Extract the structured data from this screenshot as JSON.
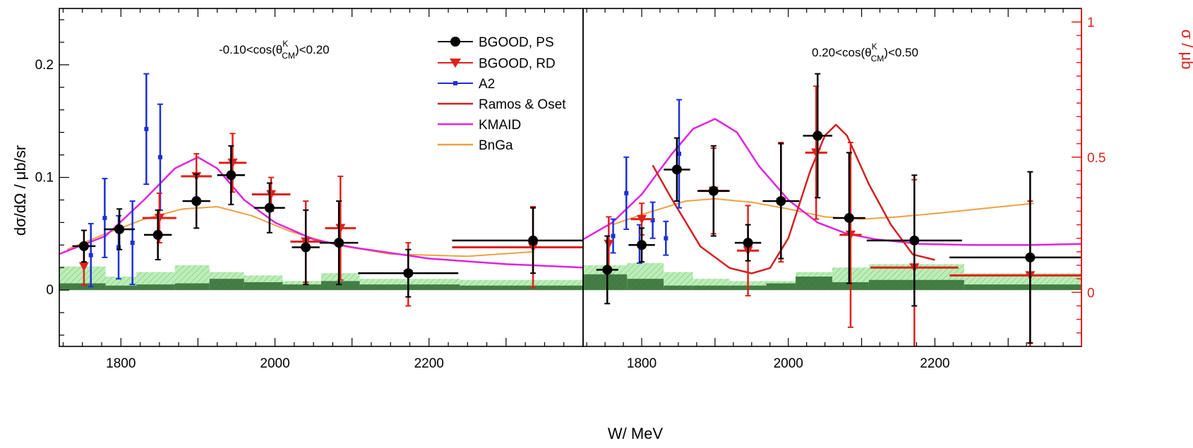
{
  "chart_data": {
    "type": "scatter",
    "xlabel": "W/ MeV",
    "ylabel": "dσ/dΩ / μb/sr",
    "y2label": "σ / μb",
    "xlim": [
      1720,
      2400
    ],
    "ylim": [
      -0.05,
      0.25
    ],
    "y2lim": [
      -0.2,
      1.05
    ],
    "x_ticks": [
      "1800",
      "2000",
      "2200"
    ],
    "y_ticks": [
      "0",
      "0.1",
      "0.2"
    ],
    "y2_ticks": [
      "0",
      "0.5",
      "1"
    ],
    "legend": {
      "position": "top-right of left panel",
      "entries": [
        "BGOOD, PS",
        "BGOOD, RD",
        "A2",
        "Ramos & Oset",
        "KMAID",
        "BnGa"
      ]
    },
    "colors": {
      "bgood_ps": "#000000",
      "bgood_rd": "#e0201b",
      "a2": "#1c30d8",
      "ramos_oset": "#d42020",
      "kmaid": "#e022e0",
      "bnga": "#f0a040",
      "systematics_light": "#9ce08a",
      "systematics_dark": "#2f6a2f",
      "secondary_axis": "#e0201b"
    },
    "panels": [
      {
        "label_prefix": "-0.10<cos(θ",
        "label_sup": "K",
        "label_sub": "CM",
        "label_suffix": ")<0.20",
        "bgood_ps": [
          {
            "x": 1752,
            "y": 0.039,
            "xerr": 15,
            "yerr": 0.014
          },
          {
            "x": 1798,
            "y": 0.054,
            "xerr": 20,
            "yerr": 0.018
          },
          {
            "x": 1848,
            "y": 0.049,
            "xerr": 18,
            "yerr": 0.022
          },
          {
            "x": 1898,
            "y": 0.079,
            "xerr": 18,
            "yerr": 0.024
          },
          {
            "x": 1943,
            "y": 0.102,
            "xerr": 18,
            "yerr": 0.026
          },
          {
            "x": 1993,
            "y": 0.073,
            "xerr": 20,
            "yerr": 0.022
          },
          {
            "x": 2040,
            "y": 0.038,
            "xerr": 18,
            "yerr": 0.033
          },
          {
            "x": 2083,
            "y": 0.042,
            "xerr": 25,
            "yerr": 0.037
          },
          {
            "x": 2173,
            "y": 0.015,
            "xerr": 65,
            "yerr": 0.021
          },
          {
            "x": 2335,
            "y": 0.044,
            "xerr": 105,
            "yerr": 0.029
          }
        ],
        "bgood_rd": [
          {
            "x": 1752,
            "y": 0.021,
            "xerr": 0,
            "yerr": 0.017
          },
          {
            "x": 1850,
            "y": 0.064,
            "xerr": 22,
            "yerr": 0.022
          },
          {
            "x": 1898,
            "y": 0.101,
            "xerr": 20,
            "yerr": 0.02
          },
          {
            "x": 1945,
            "y": 0.113,
            "xerr": 18,
            "yerr": 0.026
          },
          {
            "x": 1995,
            "y": 0.085,
            "xerr": 25,
            "yerr": 0.015
          },
          {
            "x": 2040,
            "y": 0.043,
            "xerr": 20,
            "yerr": 0.036
          },
          {
            "x": 2085,
            "y": 0.055,
            "xerr": 20,
            "yerr": 0.046
          },
          {
            "x": 2173,
            "y": 0.014,
            "xerr": 0,
            "yerr": 0.028
          },
          {
            "x": 2335,
            "y": 0.038,
            "xerr": 105,
            "yerr": 0.036
          }
        ],
        "a2": [
          {
            "x": 1761,
            "y": 0.031,
            "yerr": 0.028
          },
          {
            "x": 1779,
            "y": 0.064,
            "yerr": 0.035
          },
          {
            "x": 1797,
            "y": 0.038,
            "yerr": 0.028
          },
          {
            "x": 1815,
            "y": 0.042,
            "yerr": 0.037
          },
          {
            "x": 1833,
            "y": 0.143,
            "yerr": 0.049
          },
          {
            "x": 1851,
            "y": 0.118,
            "yerr": 0.047
          }
        ],
        "kmaid": {
          "x": [
            1720,
            1780,
            1830,
            1870,
            1900,
            1925,
            1960,
            2000,
            2050,
            2100,
            2200,
            2300,
            2400
          ],
          "y": [
            0.032,
            0.048,
            0.08,
            0.108,
            0.118,
            0.108,
            0.08,
            0.06,
            0.045,
            0.038,
            0.028,
            0.023,
            0.02
          ]
        },
        "bnga": {
          "x": [
            1730,
            1780,
            1830,
            1880,
            1925,
            1970,
            2020,
            2080,
            2150,
            2250,
            2335
          ],
          "y": [
            0.036,
            0.05,
            0.063,
            0.072,
            0.074,
            0.066,
            0.052,
            0.04,
            0.032,
            0.03,
            0.034
          ]
        },
        "ramos_oset": null,
        "systematics": [
          {
            "x0": 1720,
            "x1": 1780,
            "light": 0.021,
            "dark": 0.006
          },
          {
            "x0": 1780,
            "x1": 1820,
            "light": 0.012,
            "dark": 0.004
          },
          {
            "x0": 1820,
            "x1": 1870,
            "light": 0.016,
            "dark": 0.005
          },
          {
            "x0": 1870,
            "x1": 1915,
            "light": 0.022,
            "dark": 0.006
          },
          {
            "x0": 1915,
            "x1": 1960,
            "light": 0.016,
            "dark": 0.01
          },
          {
            "x0": 1960,
            "x1": 2010,
            "light": 0.013,
            "dark": 0.007
          },
          {
            "x0": 2010,
            "x1": 2060,
            "light": 0.008,
            "dark": 0.005
          },
          {
            "x0": 2060,
            "x1": 2110,
            "light": 0.015,
            "dark": 0.008
          },
          {
            "x0": 2110,
            "x1": 2240,
            "light": 0.01,
            "dark": 0.005
          },
          {
            "x0": 2240,
            "x1": 2400,
            "light": 0.009,
            "dark": 0.004
          }
        ]
      },
      {
        "label_prefix": "0.20<cos(θ",
        "label_sup": "K",
        "label_sub": "CM",
        "label_suffix": ")<0.50",
        "bgood_ps": [
          {
            "x": 1753,
            "y": 0.018,
            "xerr": 15,
            "yerr": 0.03
          },
          {
            "x": 1800,
            "y": 0.04,
            "xerr": 18,
            "yerr": 0.015
          },
          {
            "x": 1848,
            "y": 0.107,
            "xerr": 18,
            "yerr": 0.028
          },
          {
            "x": 1898,
            "y": 0.088,
            "xerr": 22,
            "yerr": 0.04
          },
          {
            "x": 1945,
            "y": 0.042,
            "xerr": 18,
            "yerr": 0.016
          },
          {
            "x": 1990,
            "y": 0.079,
            "xerr": 25,
            "yerr": 0.051
          },
          {
            "x": 2040,
            "y": 0.137,
            "xerr": 20,
            "yerr": 0.055
          },
          {
            "x": 2083,
            "y": 0.064,
            "xerr": 22,
            "yerr": 0.058
          },
          {
            "x": 2172,
            "y": 0.044,
            "xerr": 65,
            "yerr": 0.058
          },
          {
            "x": 2330,
            "y": 0.029,
            "xerr": 110,
            "yerr": 0.076
          }
        ],
        "bgood_rd": [
          {
            "x": 1755,
            "y": 0.041,
            "xerr": 0,
            "yerr": 0.024
          },
          {
            "x": 1800,
            "y": 0.063,
            "xerr": 15,
            "yerr": 0.014
          },
          {
            "x": 1898,
            "y": 0.088,
            "xerr": 20,
            "yerr": 0.038
          },
          {
            "x": 1945,
            "y": 0.035,
            "xerr": 15,
            "yerr": 0.04
          },
          {
            "x": 1990,
            "y": 0.078,
            "xerr": 0,
            "yerr": 0.053
          },
          {
            "x": 2038,
            "y": 0.122,
            "xerr": 15,
            "yerr": 0.059
          },
          {
            "x": 2085,
            "y": 0.049,
            "xerr": 15,
            "yerr": 0.082
          },
          {
            "x": 2172,
            "y": 0.02,
            "xerr": 60,
            "yerr": 0.078
          },
          {
            "x": 2330,
            "y": 0.013,
            "xerr": 110,
            "yerr": 0.066
          }
        ],
        "a2": [
          {
            "x": 1761,
            "y": 0.048,
            "yerr": 0.015
          },
          {
            "x": 1779,
            "y": 0.086,
            "yerr": 0.032
          },
          {
            "x": 1797,
            "y": 0.041,
            "yerr": 0.017
          },
          {
            "x": 1815,
            "y": 0.062,
            "yerr": 0.016
          },
          {
            "x": 1833,
            "y": 0.046,
            "yerr": 0.015
          },
          {
            "x": 1851,
            "y": 0.121,
            "yerr": 0.048
          }
        ],
        "kmaid": {
          "x": [
            1720,
            1760,
            1800,
            1840,
            1870,
            1900,
            1930,
            1960,
            2000,
            2040,
            2080,
            2120,
            2180,
            2250,
            2330,
            2400
          ],
          "y": [
            0.045,
            0.06,
            0.085,
            0.12,
            0.143,
            0.152,
            0.14,
            0.11,
            0.08,
            0.06,
            0.05,
            0.045,
            0.041,
            0.04,
            0.04,
            0.041
          ]
        },
        "bnga": {
          "x": [
            1760,
            1800,
            1860,
            1900,
            1950,
            2000,
            2050,
            2100,
            2150,
            2200,
            2260,
            2335
          ],
          "y": [
            0.058,
            0.067,
            0.079,
            0.081,
            0.078,
            0.072,
            0.065,
            0.063,
            0.065,
            0.068,
            0.072,
            0.077
          ]
        },
        "ramos_oset": {
          "x": [
            1815,
            1840,
            1880,
            1920,
            1950,
            1975,
            2000,
            2030,
            2050,
            2065,
            2080,
            2110,
            2140,
            2170,
            2200
          ],
          "y": [
            0.47,
            0.35,
            0.17,
            0.09,
            0.07,
            0.09,
            0.2,
            0.45,
            0.58,
            0.62,
            0.58,
            0.4,
            0.25,
            0.14,
            0.12
          ]
        },
        "systematics": [
          {
            "x0": 1720,
            "x1": 1780,
            "light": 0.022,
            "dark": 0.014
          },
          {
            "x0": 1780,
            "x1": 1830,
            "light": 0.024,
            "dark": 0.01
          },
          {
            "x0": 1830,
            "x1": 1870,
            "light": 0.016,
            "dark": 0.004
          },
          {
            "x0": 1870,
            "x1": 1920,
            "light": 0.01,
            "dark": 0.004
          },
          {
            "x0": 1920,
            "x1": 1970,
            "light": 0.008,
            "dark": 0.004
          },
          {
            "x0": 1970,
            "x1": 2010,
            "light": 0.008,
            "dark": 0.006
          },
          {
            "x0": 2010,
            "x1": 2060,
            "light": 0.016,
            "dark": 0.012
          },
          {
            "x0": 2060,
            "x1": 2110,
            "light": 0.02,
            "dark": 0.007
          },
          {
            "x0": 2110,
            "x1": 2240,
            "light": 0.023,
            "dark": 0.009
          },
          {
            "x0": 2240,
            "x1": 2400,
            "light": 0.015,
            "dark": 0.005
          }
        ]
      }
    ]
  }
}
